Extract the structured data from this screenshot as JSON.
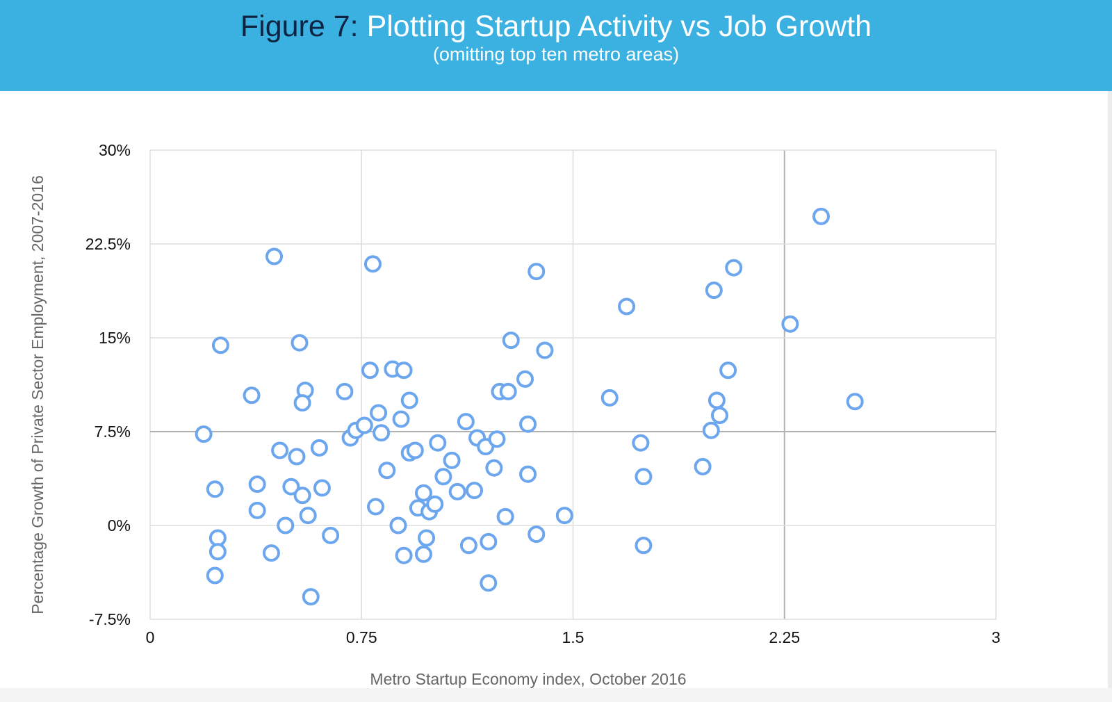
{
  "header": {
    "title_prefix": "Figure 7:",
    "title": "Plotting Startup Activity vs Job Growth",
    "subtitle": "(omitting top ten metro areas)"
  },
  "colors": {
    "header_background": "#3bb1e2",
    "title_prefix": "#0f2342",
    "title": "#ffffff",
    "marker": "#6ca6ee",
    "grid": "#dddddd",
    "highlight_grid": "#b0b0b0"
  },
  "chart_data": {
    "type": "scatter",
    "xlabel": "Metro Startup Economy index, October 2016",
    "ylabel": "Percentage Growth of Private Sector Employment, 2007-2016",
    "xlim": [
      0,
      3
    ],
    "ylim": [
      -7.5,
      30
    ],
    "x_ticks": [
      0,
      0.75,
      1.5,
      2.25,
      3
    ],
    "x_tick_labels": [
      "0",
      "0.75",
      "1.5",
      "2.25",
      "3"
    ],
    "y_ticks": [
      30,
      22.5,
      15,
      7.5,
      0,
      -7.5
    ],
    "y_tick_labels": [
      "30%",
      "22.5%",
      "15%",
      "7.5%",
      "0%",
      "-7.5%"
    ],
    "grid": true,
    "emphasized_gridlines": {
      "x": 2.25,
      "y": 7.5
    },
    "marker": "hollow circle",
    "points": [
      [
        0.19,
        7.3
      ],
      [
        0.25,
        14.4
      ],
      [
        0.23,
        2.9
      ],
      [
        0.24,
        -1.0
      ],
      [
        0.24,
        -2.1
      ],
      [
        0.23,
        -4.0
      ],
      [
        0.36,
        10.4
      ],
      [
        0.38,
        3.3
      ],
      [
        0.38,
        1.2
      ],
      [
        0.43,
        -2.2
      ],
      [
        0.44,
        21.5
      ],
      [
        0.46,
        6.0
      ],
      [
        0.48,
        0.0
      ],
      [
        0.5,
        3.1
      ],
      [
        0.52,
        5.5
      ],
      [
        0.53,
        14.6
      ],
      [
        0.54,
        2.4
      ],
      [
        0.55,
        10.8
      ],
      [
        0.54,
        9.8
      ],
      [
        0.56,
        0.8
      ],
      [
        0.57,
        -5.7
      ],
      [
        0.6,
        6.2
      ],
      [
        0.61,
        3.0
      ],
      [
        0.64,
        -0.8
      ],
      [
        0.69,
        10.7
      ],
      [
        0.71,
        7.0
      ],
      [
        0.73,
        7.6
      ],
      [
        0.76,
        8.0
      ],
      [
        0.78,
        12.4
      ],
      [
        0.79,
        20.9
      ],
      [
        0.81,
        9.0
      ],
      [
        0.82,
        7.4
      ],
      [
        0.8,
        1.5
      ],
      [
        0.84,
        4.4
      ],
      [
        0.86,
        12.5
      ],
      [
        0.88,
        0.0
      ],
      [
        0.89,
        8.5
      ],
      [
        0.9,
        12.4
      ],
      [
        0.9,
        -2.4
      ],
      [
        0.92,
        5.8
      ],
      [
        0.92,
        10.0
      ],
      [
        0.94,
        6.0
      ],
      [
        0.95,
        1.4
      ],
      [
        0.97,
        2.6
      ],
      [
        0.98,
        -1.0
      ],
      [
        0.97,
        -2.3
      ],
      [
        0.99,
        1.1
      ],
      [
        1.01,
        1.7
      ],
      [
        1.02,
        6.6
      ],
      [
        1.04,
        3.9
      ],
      [
        1.07,
        5.2
      ],
      [
        1.09,
        2.7
      ],
      [
        1.12,
        8.3
      ],
      [
        1.13,
        -1.6
      ],
      [
        1.15,
        2.8
      ],
      [
        1.16,
        7.0
      ],
      [
        1.19,
        6.3
      ],
      [
        1.2,
        -1.3
      ],
      [
        1.2,
        -4.6
      ],
      [
        1.22,
        4.6
      ],
      [
        1.23,
        6.9
      ],
      [
        1.24,
        10.7
      ],
      [
        1.27,
        10.7
      ],
      [
        1.26,
        0.7
      ],
      [
        1.28,
        14.8
      ],
      [
        1.33,
        11.7
      ],
      [
        1.34,
        8.1
      ],
      [
        1.34,
        4.1
      ],
      [
        1.37,
        20.3
      ],
      [
        1.37,
        -0.7
      ],
      [
        1.4,
        14.0
      ],
      [
        1.47,
        0.8
      ],
      [
        1.63,
        10.2
      ],
      [
        1.69,
        17.5
      ],
      [
        1.74,
        6.6
      ],
      [
        1.75,
        3.9
      ],
      [
        1.75,
        -1.6
      ],
      [
        1.96,
        4.7
      ],
      [
        1.99,
        7.6
      ],
      [
        2.0,
        18.8
      ],
      [
        2.01,
        10.0
      ],
      [
        2.02,
        8.8
      ],
      [
        2.05,
        12.4
      ],
      [
        2.07,
        20.6
      ],
      [
        2.27,
        16.1
      ],
      [
        2.38,
        24.7
      ],
      [
        2.5,
        9.9
      ]
    ]
  }
}
